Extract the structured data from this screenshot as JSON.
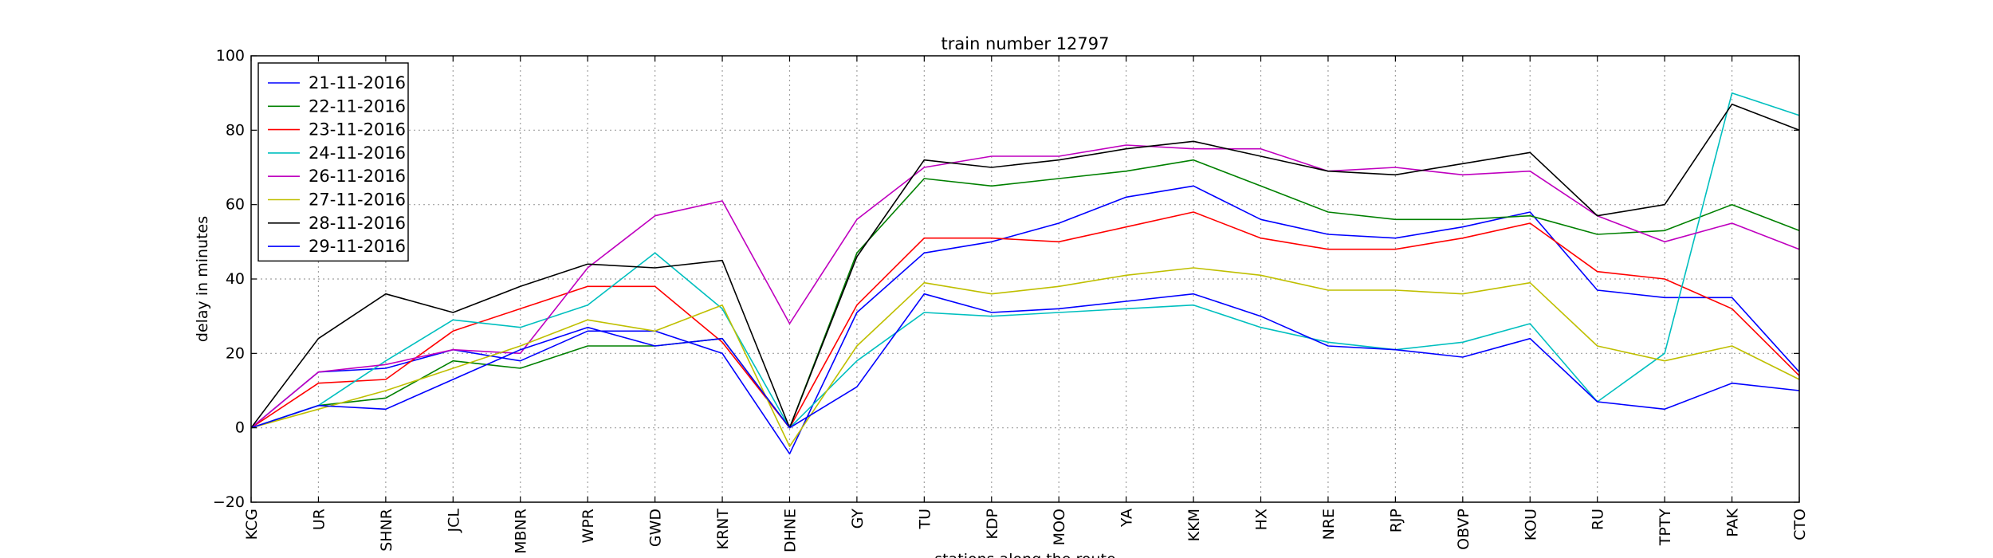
{
  "chart_data": {
    "type": "line",
    "title": "train number 12797",
    "xlabel": "stations along the route",
    "ylabel": "delay in minutes",
    "ylim": [
      -20,
      100
    ],
    "yticks": [
      -20,
      0,
      20,
      40,
      60,
      80,
      100
    ],
    "grid": true,
    "legend_position": "top-left",
    "categories": [
      "KCG",
      "UR",
      "SHNR",
      "JCL",
      "MBNR",
      "WPR",
      "GWD",
      "KRNT",
      "DHNE",
      "GY",
      "TU",
      "KDP",
      "MOO",
      "YA",
      "KKM",
      "HX",
      "NRE",
      "RJP",
      "OBVP",
      "KOU",
      "RU",
      "TPTY",
      "PAK",
      "CTO"
    ],
    "series": [
      {
        "name": "21-11-2016",
        "color": "#0000ff",
        "values": [
          0,
          15,
          16,
          21,
          18,
          26,
          26,
          20,
          -7,
          31,
          47,
          50,
          55,
          62,
          65,
          56,
          52,
          51,
          54,
          58,
          37,
          35,
          35,
          15
        ]
      },
      {
        "name": "22-11-2016",
        "color": "#008000",
        "values": [
          0,
          6,
          8,
          18,
          16,
          22,
          22,
          24,
          0,
          47,
          67,
          65,
          67,
          69,
          72,
          65,
          58,
          56,
          56,
          57,
          52,
          53,
          60,
          53
        ]
      },
      {
        "name": "23-11-2016",
        "color": "#ff0000",
        "values": [
          0,
          12,
          13,
          26,
          32,
          38,
          38,
          23,
          0,
          33,
          51,
          51,
          50,
          54,
          58,
          51,
          48,
          48,
          51,
          55,
          42,
          40,
          32,
          14
        ]
      },
      {
        "name": "24-11-2016",
        "color": "#00bfbf",
        "values": [
          0,
          6,
          18,
          29,
          27,
          33,
          47,
          32,
          0,
          18,
          31,
          30,
          31,
          32,
          33,
          27,
          23,
          21,
          23,
          28,
          7,
          20,
          90,
          84
        ]
      },
      {
        "name": "26-11-2016",
        "color": "#bf00bf",
        "values": [
          0,
          15,
          17,
          21,
          20,
          43,
          57,
          61,
          28,
          56,
          70,
          73,
          73,
          76,
          75,
          75,
          69,
          70,
          68,
          69,
          57,
          50,
          55,
          48
        ]
      },
      {
        "name": "27-11-2016",
        "color": "#bfbf00",
        "values": [
          0,
          5,
          10,
          16,
          22,
          29,
          26,
          33,
          -5,
          22,
          39,
          36,
          38,
          41,
          43,
          41,
          37,
          37,
          36,
          39,
          22,
          18,
          22,
          13
        ]
      },
      {
        "name": "28-11-2016",
        "color": "#000000",
        "values": [
          0,
          24,
          36,
          31,
          38,
          44,
          43,
          45,
          0,
          46,
          72,
          70,
          72,
          75,
          77,
          73,
          69,
          68,
          71,
          74,
          57,
          60,
          87,
          80
        ]
      },
      {
        "name": "29-11-2016",
        "color": "#0000ff",
        "values": [
          0,
          6,
          5,
          13,
          21,
          27,
          22,
          24,
          0,
          11,
          36,
          31,
          32,
          34,
          36,
          30,
          22,
          21,
          19,
          24,
          7,
          5,
          12,
          10
        ]
      }
    ]
  }
}
